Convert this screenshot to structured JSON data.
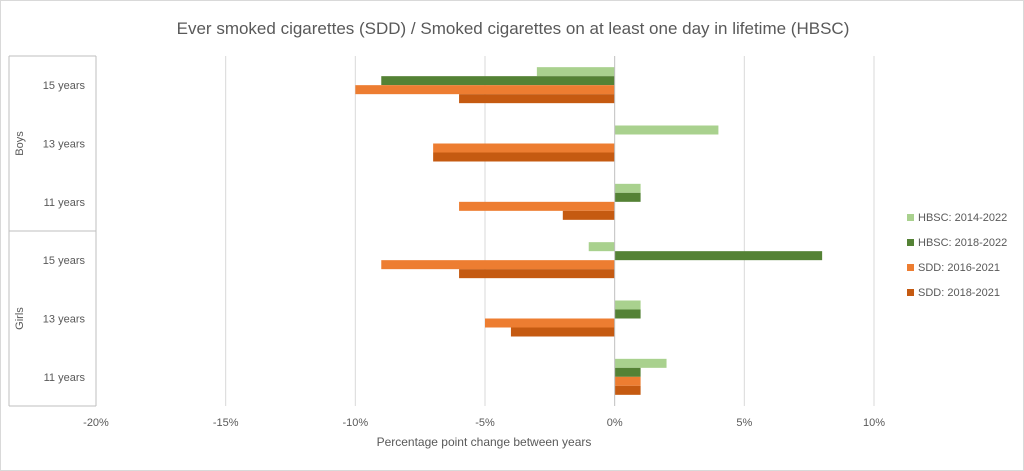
{
  "chart_data": {
    "type": "bar",
    "orientation": "horizontal",
    "title": "Ever smoked cigarettes (SDD) / Smoked cigarettes on at least one day in lifetime (HBSC)",
    "xlabel": "Percentage point change between years",
    "xlim": [
      -20,
      10
    ],
    "xticks": [
      -20,
      -15,
      -10,
      -5,
      0,
      5,
      10
    ],
    "xtick_labels": [
      "-20%",
      "-15%",
      "-10%",
      "-5%",
      "0%",
      "5%",
      "10%"
    ],
    "grid": true,
    "legend_position": "right",
    "groups": [
      {
        "label": "Boys",
        "categories": [
          "15 years",
          "13 years",
          "11 years"
        ]
      },
      {
        "label": "Girls",
        "categories": [
          "15 years",
          "13 years",
          "11 years"
        ]
      }
    ],
    "series": [
      {
        "name": "HBSC: 2014-2022",
        "color": "#a9d18e",
        "values": [
          -3,
          4,
          1,
          -1,
          1,
          2
        ]
      },
      {
        "name": "HBSC: 2018-2022",
        "color": "#548235",
        "values": [
          -9,
          null,
          1,
          8,
          1,
          1
        ]
      },
      {
        "name": "SDD: 2016-2021",
        "color": "#ed7d31",
        "values": [
          -10,
          -7,
          -6,
          -9,
          -5,
          1
        ]
      },
      {
        "name": "SDD: 2018-2021",
        "color": "#c55a11",
        "values": [
          -6,
          -7,
          -2,
          -6,
          -4,
          1
        ]
      }
    ]
  }
}
